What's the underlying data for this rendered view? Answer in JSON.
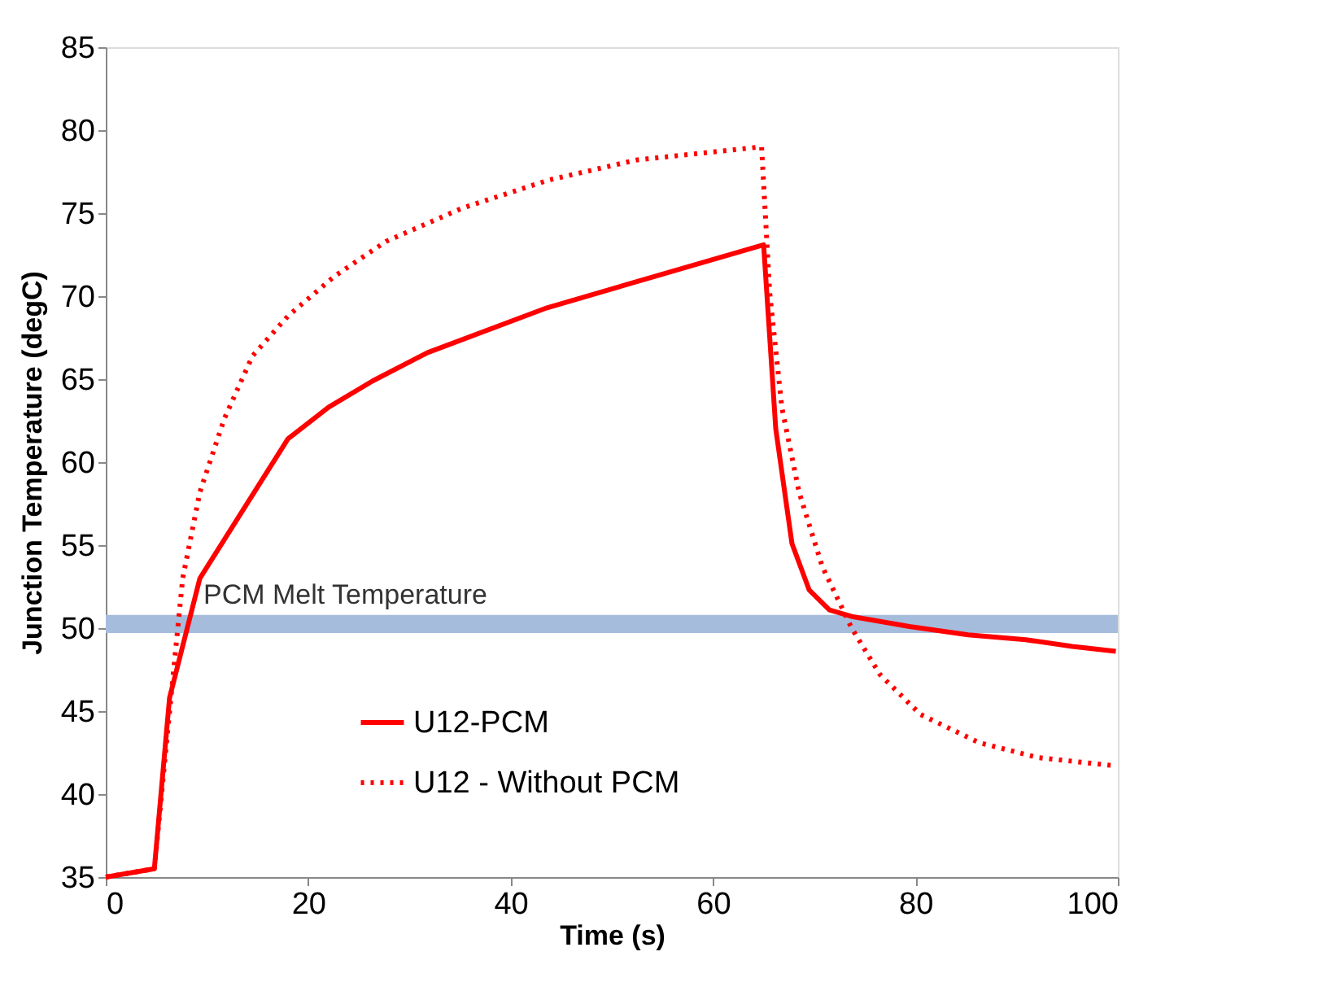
{
  "chart_data": {
    "type": "line",
    "xlabel": "Time (s)",
    "ylabel": "Junction Temperature (degC)",
    "xlim": [
      0,
      100
    ],
    "xticks": [
      0,
      20,
      40,
      60,
      80,
      100
    ],
    "ylim": [
      35,
      85
    ],
    "yticks": [
      35,
      40,
      45,
      50,
      55,
      60,
      65,
      70,
      75,
      80,
      85
    ],
    "grid": false,
    "legend": "bottom",
    "marker": "none",
    "bands": [
      {
        "axis": "y",
        "from": 49.7,
        "to": 50.8,
        "label": "PCM Melt Temperature",
        "color": "#a5bcdc"
      }
    ],
    "series": [
      {
        "name": "U12-PCM",
        "color": "#ff0000",
        "line_style": "solid",
        "x": [
          0,
          4.8,
          6.3,
          9.3,
          18,
          22,
          26.4,
          31.8,
          43.6,
          65,
          66.2,
          67.8,
          69.5,
          71.5,
          73.7,
          79.4,
          85.2,
          90.9,
          95.5,
          99.8
        ],
        "values": [
          35,
          35.5,
          45.8,
          53,
          61.4,
          63.3,
          64.9,
          66.6,
          69.3,
          73.1,
          62,
          55.1,
          52.3,
          51.1,
          50.7,
          50.1,
          49.6,
          49.3,
          48.9,
          48.6
        ]
      },
      {
        "name": "U12 - Without PCM",
        "color": "#ff0000",
        "line_style": "dotted",
        "x": [
          0,
          4.8,
          6.5,
          7.6,
          9.3,
          11.7,
          14.5,
          18,
          22.6,
          27.7,
          35.2,
          43.8,
          52.4,
          64.8,
          65.6,
          66.8,
          68.5,
          70.8,
          73.7,
          76.5,
          80.5,
          86.3,
          92.1,
          99.8
        ],
        "values": [
          35,
          35.5,
          46.2,
          53,
          58.2,
          62.6,
          66.4,
          68.8,
          71.2,
          73.3,
          75.3,
          77,
          78.2,
          79,
          70.2,
          63.3,
          58.2,
          53.7,
          50,
          47.2,
          44.8,
          43.1,
          42.2,
          41.7
        ]
      }
    ]
  }
}
